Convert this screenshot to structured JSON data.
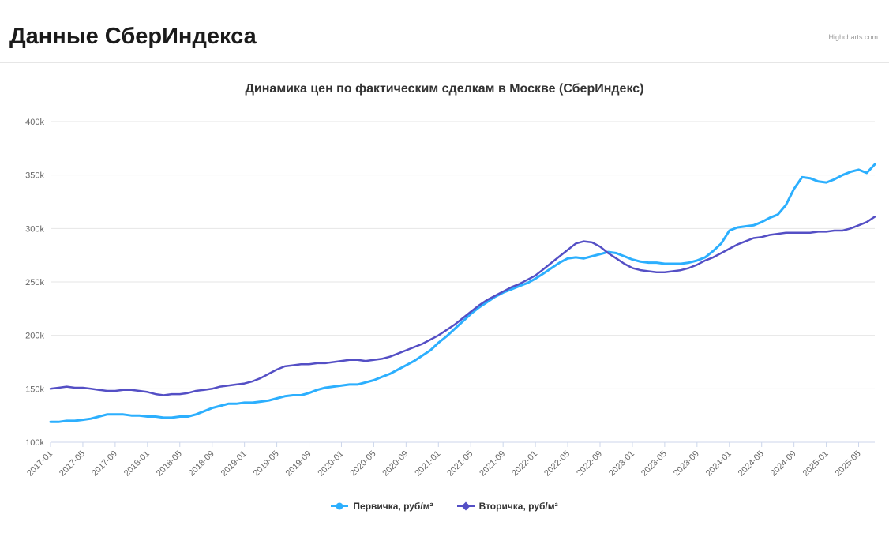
{
  "page": {
    "title": "Данные СберИндекса",
    "credit": "Highcharts.com"
  },
  "chart_data": {
    "type": "line",
    "title": "Динамика цен по фактическим сделкам в Москве (СберИндекс)",
    "x_unit": "month",
    "x_start": "2017-01",
    "x_end": "2025-07",
    "x_tick_every_n_months": 4,
    "x_tick_labels": [
      "2017-01",
      "2017-05",
      "2017-09",
      "2018-01",
      "2018-05",
      "2018-09",
      "2019-01",
      "2019-05",
      "2019-09",
      "2020-01",
      "2020-05",
      "2020-09",
      "2021-01",
      "2021-05",
      "2021-09",
      "2022-01",
      "2022-05",
      "2022-09",
      "2023-01",
      "2023-05",
      "2023-09",
      "2024-01",
      "2024-05",
      "2024-09",
      "2025-01",
      "2025-05"
    ],
    "y_tick_labels": [
      "100k",
      "150k",
      "200k",
      "250k",
      "300k",
      "350k",
      "400k"
    ],
    "ylim": [
      100000,
      400000
    ],
    "y_tick_step": 50000,
    "grid": true,
    "legend_position": "bottom",
    "colors": {
      "primary": "#2caffe",
      "secondary": "#544fc5",
      "grid": "#e6e6e6",
      "axis_line": "#ccd6eb",
      "tick_text": "#666666",
      "title_text": "#333333"
    },
    "series": [
      {
        "name": "Первичка, руб/м²",
        "color": "#2caffe",
        "marker": "circle",
        "units": "руб/м², thousands",
        "values_thousands": [
          119,
          119,
          120,
          120,
          121,
          122,
          124,
          126,
          126,
          126,
          125,
          125,
          124,
          124,
          123,
          123,
          124,
          124,
          126,
          129,
          132,
          134,
          136,
          136,
          137,
          137,
          138,
          139,
          141,
          143,
          144,
          144,
          146,
          149,
          151,
          152,
          153,
          154,
          154,
          156,
          158,
          161,
          164,
          168,
          172,
          176,
          181,
          186,
          193,
          199,
          206,
          213,
          220,
          226,
          231,
          236,
          240,
          243,
          246,
          249,
          253,
          258,
          263,
          268,
          272,
          273,
          272,
          274,
          276,
          278,
          277,
          274,
          271,
          269,
          268,
          268,
          267,
          267,
          267,
          268,
          270,
          273,
          279,
          286,
          298,
          301,
          302,
          303,
          306,
          310,
          313,
          322,
          337,
          348,
          347,
          344,
          343,
          346,
          350,
          353,
          355,
          352,
          360
        ]
      },
      {
        "name": "Вторичка, руб/м²",
        "color": "#544fc5",
        "marker": "diamond",
        "units": "руб/м², thousands",
        "values_thousands": [
          150,
          151,
          152,
          151,
          151,
          150,
          149,
          148,
          148,
          149,
          149,
          148,
          147,
          145,
          144,
          145,
          145,
          146,
          148,
          149,
          150,
          152,
          153,
          154,
          155,
          157,
          160,
          164,
          168,
          171,
          172,
          173,
          173,
          174,
          174,
          175,
          176,
          177,
          177,
          176,
          177,
          178,
          180,
          183,
          186,
          189,
          192,
          196,
          200,
          205,
          210,
          216,
          222,
          228,
          233,
          237,
          241,
          245,
          248,
          252,
          256,
          262,
          268,
          274,
          280,
          286,
          288,
          287,
          283,
          277,
          272,
          267,
          263,
          261,
          260,
          259,
          259,
          260,
          261,
          263,
          266,
          270,
          273,
          277,
          281,
          285,
          288,
          291,
          292,
          294,
          295,
          296,
          296,
          296,
          296,
          297,
          297,
          298,
          298,
          300,
          303,
          306,
          311
        ]
      }
    ]
  }
}
